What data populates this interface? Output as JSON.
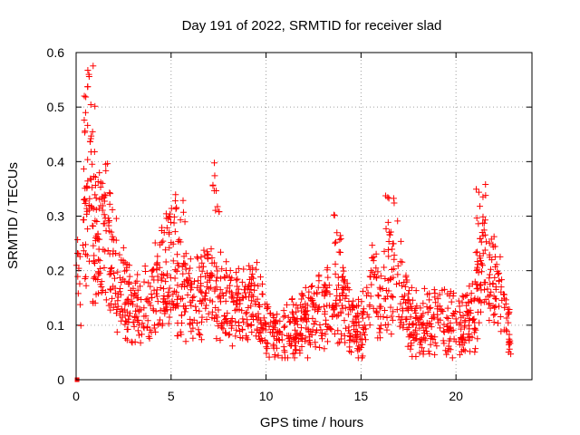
{
  "chart_data": {
    "type": "scatter",
    "title": "Day 191 of 2022, SRMTID for receiver slad",
    "xlabel": "GPS time / hours",
    "ylabel": "SRMTID / TECUs",
    "xlim": [
      0,
      24
    ],
    "ylim": [
      0,
      0.6
    ],
    "xticks": [
      "0",
      "5",
      "10",
      "15",
      "20"
    ],
    "yticks": [
      "0",
      "0.1",
      "0.2",
      "0.3",
      "0.4",
      "0.5",
      "0.6"
    ],
    "marker": "plus",
    "grid": true,
    "colors": {
      "points": "#ff0000",
      "origin_marker": "#ff0000"
    },
    "trend": [
      [
        0.0,
        0.18
      ],
      [
        0.4,
        0.2
      ],
      [
        0.7,
        0.32
      ],
      [
        1.0,
        0.24
      ],
      [
        1.5,
        0.24
      ],
      [
        2.0,
        0.2
      ],
      [
        2.5,
        0.16
      ],
      [
        3.0,
        0.12
      ],
      [
        3.5,
        0.13
      ],
      [
        4.0,
        0.15
      ],
      [
        4.5,
        0.18
      ],
      [
        5.0,
        0.22
      ],
      [
        5.5,
        0.16
      ],
      [
        6.0,
        0.15
      ],
      [
        6.5,
        0.16
      ],
      [
        7.0,
        0.17
      ],
      [
        7.5,
        0.16
      ],
      [
        8.0,
        0.13
      ],
      [
        8.5,
        0.13
      ],
      [
        9.0,
        0.14
      ],
      [
        9.5,
        0.14
      ],
      [
        10.0,
        0.1
      ],
      [
        10.5,
        0.08
      ],
      [
        11.0,
        0.08
      ],
      [
        11.5,
        0.09
      ],
      [
        12.0,
        0.1
      ],
      [
        12.5,
        0.12
      ],
      [
        13.0,
        0.13
      ],
      [
        13.5,
        0.14
      ],
      [
        14.0,
        0.15
      ],
      [
        14.5,
        0.1
      ],
      [
        15.0,
        0.09
      ],
      [
        15.5,
        0.17
      ],
      [
        16.0,
        0.14
      ],
      [
        16.5,
        0.19
      ],
      [
        17.0,
        0.19
      ],
      [
        17.5,
        0.12
      ],
      [
        18.0,
        0.1
      ],
      [
        18.5,
        0.11
      ],
      [
        19.0,
        0.11
      ],
      [
        19.5,
        0.1
      ],
      [
        20.0,
        0.1
      ],
      [
        20.5,
        0.1
      ],
      [
        21.0,
        0.13
      ],
      [
        21.5,
        0.22
      ],
      [
        22.0,
        0.18
      ],
      [
        22.5,
        0.13
      ],
      [
        22.9,
        0.09
      ]
    ],
    "bursts": [
      {
        "x": [
          0.4,
          1.0
        ],
        "y": [
          0.3,
          0.58
        ],
        "n": 30
      },
      {
        "x": [
          1.2,
          1.8
        ],
        "y": [
          0.25,
          0.44
        ],
        "n": 15
      },
      {
        "x": [
          4.5,
          5.8
        ],
        "y": [
          0.25,
          0.34
        ],
        "n": 20
      },
      {
        "x": [
          7.2,
          7.6
        ],
        "y": [
          0.3,
          0.43
        ],
        "n": 10
      },
      {
        "x": [
          13.5,
          14.0
        ],
        "y": [
          0.2,
          0.31
        ],
        "n": 10
      },
      {
        "x": [
          16.2,
          16.8
        ],
        "y": [
          0.22,
          0.34
        ],
        "n": 10
      },
      {
        "x": [
          21.0,
          21.6
        ],
        "y": [
          0.22,
          0.36
        ],
        "n": 14
      }
    ],
    "n_points": 1500,
    "x_end": 22.9,
    "origin_point": {
      "x": 0.05,
      "y": 0.0
    }
  }
}
